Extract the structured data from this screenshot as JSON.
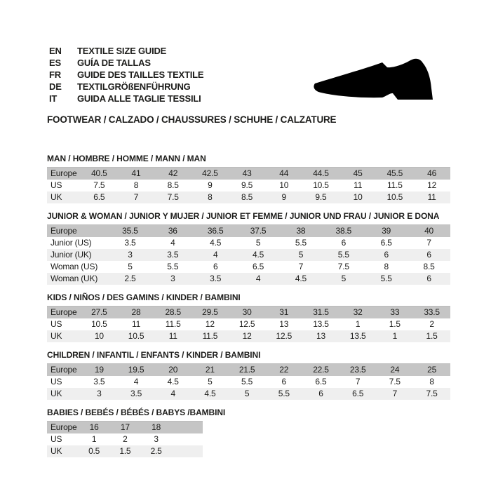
{
  "header": {
    "languages": [
      {
        "code": "EN",
        "label": "TEXTILE SIZE GUIDE"
      },
      {
        "code": "ES",
        "label": "GUÍA DE TALLAS"
      },
      {
        "code": "FR",
        "label": "GUIDE DES TAILLES TEXTILE"
      },
      {
        "code": "DE",
        "label": "TEXTILGRÖßENFÜHRUNG"
      },
      {
        "code": "IT",
        "label": "GUIDA ALLE TAGLIE TESSILI"
      }
    ],
    "category_line": "FOOTWEAR / CALZADO / CHAUSSURES / SCHUHE / CALZATURE",
    "shoe_icon": "dress-shoe-silhouette"
  },
  "colors": {
    "header_row_bg": "#c5c5c5",
    "alt_row_bg": "#efefef",
    "row_bg": "#ffffff",
    "text": "#1d1d1b",
    "shoe": "#000000"
  },
  "sections": [
    {
      "title": "MAN / HOMBRE / HOMME / MANN / MAN",
      "rows": [
        {
          "label": "Europe",
          "values": [
            "40.5",
            "41",
            "42",
            "42.5",
            "43",
            "44",
            "44.5",
            "45",
            "45.5",
            "46"
          ]
        },
        {
          "label": "US",
          "values": [
            "7.5",
            "8",
            "8.5",
            "9",
            "9.5",
            "10",
            "10.5",
            "11",
            "11.5",
            "12"
          ]
        },
        {
          "label": "UK",
          "values": [
            "6.5",
            "7",
            "7.5",
            "8",
            "8.5",
            "9",
            "9.5",
            "10",
            "10.5",
            "11"
          ]
        }
      ]
    },
    {
      "title": "JUNIOR & WOMAN / JUNIOR Y MUJER / JUNIOR ET FEMME / JUNIOR UND FRAU / JUNIOR E DONA",
      "rows": [
        {
          "label": "Europe",
          "values": [
            "35.5",
            "36",
            "36.5",
            "37.5",
            "38",
            "38.5",
            "39",
            "40"
          ]
        },
        {
          "label": "Junior (US)",
          "values": [
            "3.5",
            "4",
            "4.5",
            "5",
            "5.5",
            "6",
            "6.5",
            "7"
          ]
        },
        {
          "label": "Junior (UK)",
          "values": [
            "3",
            "3.5",
            "4",
            "4.5",
            "5",
            "5.5",
            "6",
            "6"
          ]
        },
        {
          "label": "Woman (US)",
          "values": [
            "5",
            "5.5",
            "6",
            "6.5",
            "7",
            "7.5",
            "8",
            "8.5"
          ]
        },
        {
          "label": "Woman (UK)",
          "values": [
            "2.5",
            "3",
            "3.5",
            "4",
            "4.5",
            "5",
            "5.5",
            "6"
          ]
        }
      ]
    },
    {
      "title": "KIDS / NIÑOS / DES GAMINS / KINDER / BAMBINI",
      "rows": [
        {
          "label": "Europe",
          "values": [
            "27.5",
            "28",
            "28.5",
            "29.5",
            "30",
            "31",
            "31.5",
            "32",
            "33",
            "33.5"
          ]
        },
        {
          "label": "US",
          "values": [
            "10.5",
            "11",
            "11.5",
            "12",
            "12.5",
            "13",
            "13.5",
            "1",
            "1.5",
            "2"
          ]
        },
        {
          "label": "UK",
          "values": [
            "10",
            "10.5",
            "11",
            "11.5",
            "12",
            "12.5",
            "13",
            "13.5",
            "1",
            "1.5"
          ]
        }
      ]
    },
    {
      "title": "CHILDREN / INFANTIL / ENFANTS / KINDER / BAMBINI",
      "rows": [
        {
          "label": "Europe",
          "values": [
            "19",
            "19.5",
            "20",
            "21",
            "21.5",
            "22",
            "22.5",
            "23.5",
            "24",
            "25"
          ]
        },
        {
          "label": "US",
          "values": [
            "3.5",
            "4",
            "4.5",
            "5",
            "5.5",
            "6",
            "6.5",
            "7",
            "7.5",
            "8"
          ]
        },
        {
          "label": "UK",
          "values": [
            "3",
            "3.5",
            "4",
            "4.5",
            "5",
            "5.5",
            "6",
            "6.5",
            "7",
            "7.5"
          ]
        }
      ]
    },
    {
      "title": "BABIES  / BEBÉS / BÉBÉS / BABYS /BAMBINI",
      "rows": [
        {
          "label": "Europe",
          "values": [
            "16",
            "17",
            "18",
            ""
          ]
        },
        {
          "label": "US",
          "values": [
            "1",
            "2",
            "3",
            ""
          ]
        },
        {
          "label": "UK",
          "values": [
            "0.5",
            "1.5",
            "2.5",
            ""
          ]
        }
      ]
    }
  ]
}
